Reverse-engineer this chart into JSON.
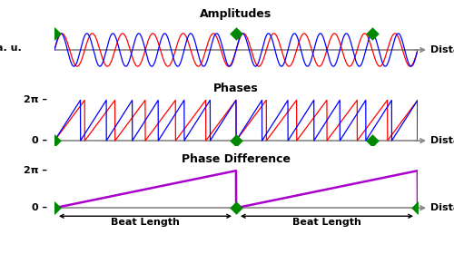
{
  "title_amplitudes": "Amplitudes",
  "title_phases": "Phases",
  "title_phase_diff": "Phase Difference",
  "ylabel_amplitudes": "a. u.",
  "xlabel": "Distance",
  "beat_length_label": "Beat Length",
  "label_2pi": "2π",
  "label_0": "0",
  "color_red": "#ff0000",
  "color_blue": "#0000ff",
  "color_purple": "#aa00cc",
  "color_green": "#008800",
  "color_axis": "#888888",
  "bg_color": "#ffffff",
  "n_fast": 14,
  "n_slow": 12,
  "n_points": 3000,
  "diamond_size": 55,
  "title_fontsize": 9,
  "label_fontsize": 8,
  "tick_label_fontsize": 8
}
